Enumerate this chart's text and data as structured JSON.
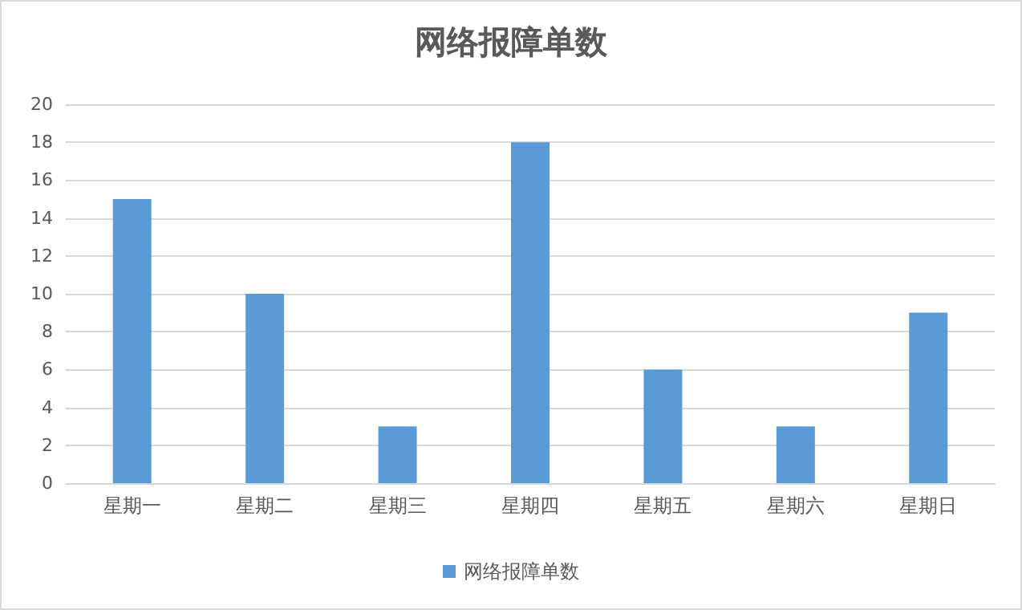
{
  "chart_data": {
    "type": "bar",
    "title": "网络报障单数",
    "categories": [
      "星期一",
      "星期二",
      "星期三",
      "星期四",
      "星期五",
      "星期六",
      "星期日"
    ],
    "series": [
      {
        "name": "网络报障单数",
        "color": "#5b9bd5",
        "values": [
          15,
          10,
          3,
          18,
          6,
          3,
          9
        ]
      }
    ],
    "ylim": [
      0,
      20
    ],
    "yticks": [
      0,
      2,
      4,
      6,
      8,
      10,
      12,
      14,
      16,
      18,
      20
    ],
    "grid": "y",
    "legend": "bottom"
  }
}
